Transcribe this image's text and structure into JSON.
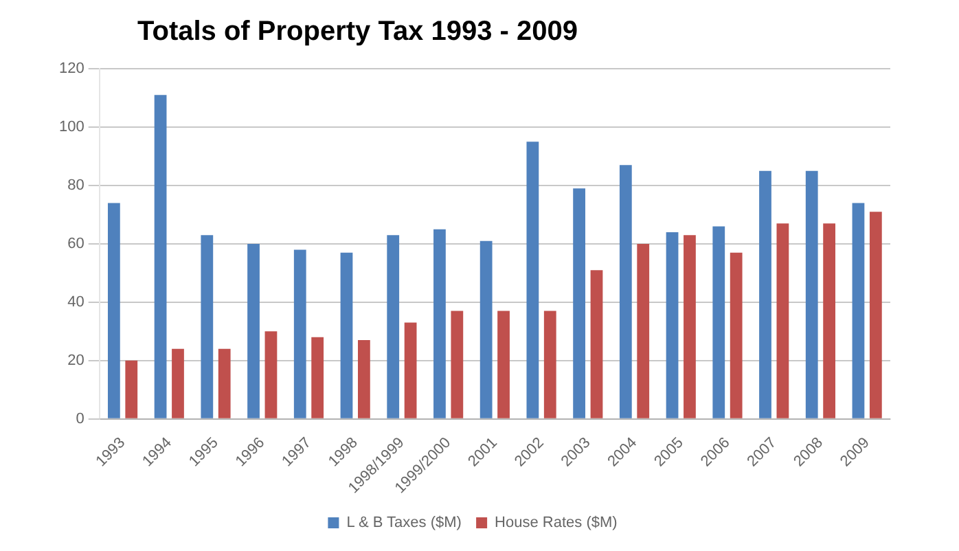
{
  "chart_data": {
    "type": "bar",
    "title": "Totals of Property Tax 1993 - 2009",
    "categories": [
      "1993",
      "1994",
      "1995",
      "1996",
      "1997",
      "1998",
      "1998/1999",
      "1999/2000",
      "2001",
      "2002",
      "2003",
      "2004",
      "2005",
      "2006",
      "2007",
      "2008",
      "2009"
    ],
    "series": [
      {
        "name": "L & B Taxes ($M)",
        "color": "#4f81bd",
        "values": [
          74,
          111,
          63,
          60,
          58,
          57,
          63,
          65,
          61,
          95,
          79,
          87,
          64,
          66,
          85,
          85,
          74
        ]
      },
      {
        "name": "House Rates ($M)",
        "color": "#c0504d",
        "values": [
          20,
          24,
          24,
          30,
          28,
          27,
          33,
          37,
          37,
          37,
          51,
          60,
          63,
          57,
          67,
          67,
          71
        ]
      }
    ],
    "ylim": [
      0,
      120
    ],
    "yticks": [
      0,
      20,
      40,
      60,
      80,
      100,
      120
    ],
    "grid": "y",
    "legend": "bottom"
  }
}
